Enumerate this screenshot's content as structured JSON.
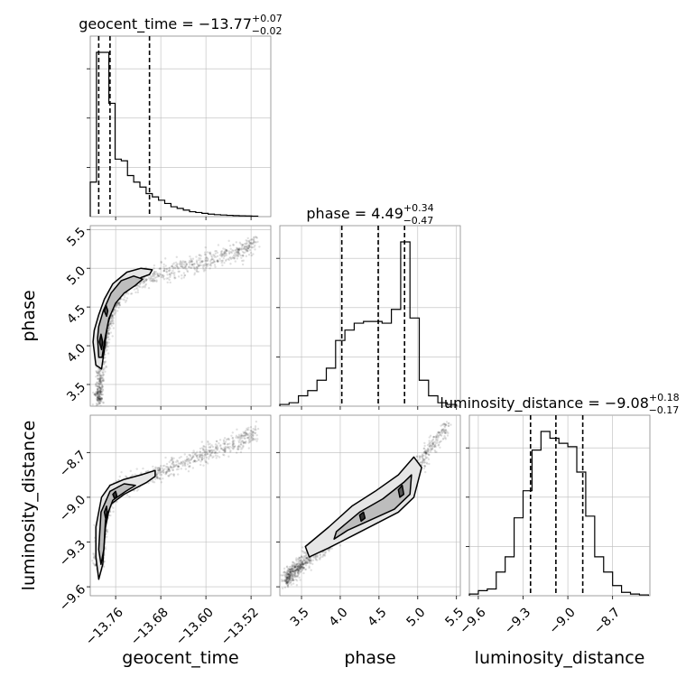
{
  "chart_data": {
    "type": "corner",
    "parameters": [
      "geocent_time",
      "phase",
      "luminosity_distance"
    ],
    "ranges": {
      "geocent_time": [
        -13.805,
        -13.485
      ],
      "phase": [
        3.22,
        5.55
      ],
      "luminosity_distance": [
        -9.66,
        -8.45
      ]
    },
    "ticks": {
      "geocent_time": {
        "values": [
          -13.76,
          -13.68,
          -13.6,
          -13.52
        ],
        "labels": [
          "−13.76",
          "−13.68",
          "−13.60",
          "−13.52"
        ]
      },
      "phase": {
        "values": [
          3.5,
          4.0,
          4.5,
          5.0,
          5.5
        ],
        "labels": [
          "3.5",
          "4.0",
          "4.5",
          "5.0",
          "5.5"
        ]
      },
      "luminosity_distance": {
        "values": [
          -9.6,
          -9.3,
          -9.0,
          -8.7
        ],
        "labels": [
          "−9.6",
          "−9.3",
          "−9.0",
          "−8.7"
        ]
      }
    },
    "titles": [
      {
        "param": "geocent_time",
        "label": "geocent_time = ",
        "median": "−13.77",
        "plus": "+0.07",
        "minus": "−0.02"
      },
      {
        "param": "phase",
        "label": "phase = ",
        "median": "4.49",
        "plus": "+0.34",
        "minus": "−0.47"
      },
      {
        "param": "luminosity_distance",
        "label": "luminosity_distance = ",
        "median": "−9.08",
        "plus": "+0.18",
        "minus": "−0.17"
      }
    ],
    "quantile_lines": {
      "geocent_time": [
        -13.79,
        -13.77,
        -13.7
      ],
      "phase": [
        4.02,
        4.49,
        4.83
      ],
      "luminosity_distance": [
        -9.25,
        -9.08,
        -8.9
      ]
    },
    "histograms": {
      "geocent_time": {
        "edges": [
          -13.805,
          -13.794,
          -13.783,
          -13.772,
          -13.761,
          -13.75,
          -13.739,
          -13.728,
          -13.717,
          -13.706,
          -13.695,
          -13.684,
          -13.673,
          -13.662,
          -13.651,
          -13.64,
          -13.629,
          -13.618,
          -13.607,
          -13.596,
          -13.585,
          -13.574,
          -13.563,
          -13.552,
          -13.541,
          -13.53,
          -13.519,
          -13.508
        ],
        "counts": [
          0.21,
          1.0,
          1.0,
          0.69,
          0.35,
          0.34,
          0.25,
          0.21,
          0.18,
          0.14,
          0.12,
          0.1,
          0.08,
          0.06,
          0.05,
          0.04,
          0.03,
          0.025,
          0.02,
          0.015,
          0.012,
          0.01,
          0.008,
          0.006,
          0.005,
          0.004,
          0.003
        ]
      },
      "phase": {
        "edges": [
          3.22,
          3.34,
          3.46,
          3.58,
          3.7,
          3.82,
          3.94,
          4.06,
          4.18,
          4.3,
          4.42,
          4.54,
          4.66,
          4.78,
          4.9,
          5.02,
          5.14,
          5.26,
          5.38,
          5.5
        ],
        "counts": [
          0.01,
          0.02,
          0.06,
          0.09,
          0.15,
          0.22,
          0.38,
          0.44,
          0.48,
          0.49,
          0.49,
          0.48,
          0.56,
          0.95,
          0.51,
          0.15,
          0.06,
          0.02,
          0.01
        ]
      },
      "luminosity_distance": {
        "edges": [
          -9.66,
          -9.6,
          -9.54,
          -9.48,
          -9.42,
          -9.36,
          -9.3,
          -9.24,
          -9.18,
          -9.12,
          -9.06,
          -9.0,
          -8.94,
          -8.88,
          -8.82,
          -8.76,
          -8.7,
          -8.64,
          -8.58,
          -8.52,
          -8.46
        ],
        "counts": [
          0.01,
          0.03,
          0.04,
          0.14,
          0.23,
          0.46,
          0.62,
          0.86,
          0.97,
          0.93,
          0.9,
          0.88,
          0.73,
          0.47,
          0.23,
          0.14,
          0.06,
          0.02,
          0.01,
          0.005
        ]
      }
    },
    "scatter_2d": [
      {
        "x_param": "geocent_time",
        "y_param": "phase",
        "trend": [
          [
            -13.79,
            3.3
          ],
          [
            -13.785,
            3.9
          ],
          [
            -13.775,
            4.25
          ],
          [
            -13.765,
            4.5
          ],
          [
            -13.75,
            4.68
          ],
          [
            -13.73,
            4.8
          ],
          [
            -13.7,
            4.9
          ],
          [
            -13.66,
            4.98
          ],
          [
            -13.62,
            5.05
          ],
          [
            -13.58,
            5.13
          ],
          [
            -13.54,
            5.22
          ],
          [
            -13.51,
            5.35
          ]
        ],
        "contours": [
          [
            [
              -13.8,
              4.05
            ],
            [
              -13.795,
              3.75
            ],
            [
              -13.785,
              3.7
            ],
            [
              -13.78,
              3.95
            ],
            [
              -13.775,
              4.25
            ],
            [
              -13.765,
              4.5
            ],
            [
              -13.75,
              4.66
            ],
            [
              -13.735,
              4.78
            ],
            [
              -13.715,
              4.88
            ],
            [
              -13.7,
              4.92
            ],
            [
              -13.695,
              4.98
            ],
            [
              -13.715,
              5.0
            ],
            [
              -13.74,
              4.95
            ],
            [
              -13.765,
              4.8
            ],
            [
              -13.78,
              4.6
            ],
            [
              -13.79,
              4.4
            ],
            [
              -13.798,
              4.2
            ]
          ],
          [
            [
              -13.792,
              4.1
            ],
            [
              -13.79,
              3.85
            ],
            [
              -13.784,
              3.85
            ],
            [
              -13.78,
              4.05
            ],
            [
              -13.772,
              4.35
            ],
            [
              -13.76,
              4.55
            ],
            [
              -13.745,
              4.68
            ],
            [
              -13.725,
              4.78
            ],
            [
              -13.712,
              4.86
            ],
            [
              -13.728,
              4.9
            ],
            [
              -13.75,
              4.84
            ],
            [
              -13.768,
              4.68
            ],
            [
              -13.782,
              4.45
            ],
            [
              -13.79,
              4.25
            ]
          ],
          [
            [
              -13.78,
              4.45
            ],
            [
              -13.776,
              4.38
            ],
            [
              -13.774,
              4.45
            ],
            [
              -13.777,
              4.52
            ]
          ],
          [
            [
              -13.789,
              4.05
            ],
            [
              -13.785,
              3.95
            ],
            [
              -13.783,
              4.05
            ],
            [
              -13.786,
              4.15
            ]
          ]
        ]
      },
      {
        "x_param": "geocent_time",
        "y_param": "luminosity_distance",
        "trend": [
          [
            -13.79,
            -9.45
          ],
          [
            -13.785,
            -9.25
          ],
          [
            -13.775,
            -9.05
          ],
          [
            -13.76,
            -8.95
          ],
          [
            -13.74,
            -8.92
          ],
          [
            -13.7,
            -8.85
          ],
          [
            -13.66,
            -8.8
          ],
          [
            -13.62,
            -8.74
          ],
          [
            -13.58,
            -8.68
          ],
          [
            -13.54,
            -8.62
          ],
          [
            -13.51,
            -8.56
          ]
        ],
        "contours": [
          [
            [
              -13.795,
              -9.4
            ],
            [
              -13.79,
              -9.55
            ],
            [
              -13.783,
              -9.45
            ],
            [
              -13.778,
              -9.2
            ],
            [
              -13.77,
              -9.05
            ],
            [
              -13.745,
              -8.98
            ],
            [
              -13.72,
              -8.93
            ],
            [
              -13.705,
              -8.9
            ],
            [
              -13.69,
              -8.86
            ],
            [
              -13.69,
              -8.82
            ],
            [
              -13.715,
              -8.85
            ],
            [
              -13.745,
              -8.88
            ],
            [
              -13.77,
              -8.92
            ],
            [
              -13.785,
              -9.0
            ],
            [
              -13.795,
              -9.2
            ]
          ],
          [
            [
              -13.79,
              -9.35
            ],
            [
              -13.786,
              -9.45
            ],
            [
              -13.781,
              -9.35
            ],
            [
              -13.778,
              -9.15
            ],
            [
              -13.765,
              -9.02
            ],
            [
              -13.742,
              -8.96
            ],
            [
              -13.725,
              -8.92
            ],
            [
              -13.745,
              -8.91
            ],
            [
              -13.77,
              -8.96
            ],
            [
              -13.786,
              -9.1
            ]
          ],
          [
            [
              -13.78,
              -9.1
            ],
            [
              -13.776,
              -9.06
            ],
            [
              -13.775,
              -9.1
            ],
            [
              -13.778,
              -9.14
            ]
          ],
          [
            [
              -13.765,
              -8.98
            ],
            [
              -13.76,
              -8.96
            ],
            [
              -13.758,
              -8.99
            ],
            [
              -13.762,
              -9.01
            ]
          ]
        ]
      },
      {
        "x_param": "phase",
        "y_param": "luminosity_distance",
        "trend": [
          [
            3.3,
            -9.55
          ],
          [
            3.6,
            -9.4
          ],
          [
            3.9,
            -9.28
          ],
          [
            4.2,
            -9.15
          ],
          [
            4.5,
            -9.05
          ],
          [
            4.8,
            -8.92
          ],
          [
            5.0,
            -8.8
          ],
          [
            5.2,
            -8.65
          ],
          [
            5.4,
            -8.5
          ]
        ],
        "contours": [
          [
            [
              3.55,
              -9.33
            ],
            [
              3.85,
              -9.2
            ],
            [
              4.15,
              -9.06
            ],
            [
              4.45,
              -8.96
            ],
            [
              4.75,
              -8.85
            ],
            [
              4.95,
              -8.73
            ],
            [
              5.05,
              -8.8
            ],
            [
              4.95,
              -9.0
            ],
            [
              4.75,
              -9.1
            ],
            [
              4.45,
              -9.18
            ],
            [
              4.15,
              -9.26
            ],
            [
              3.85,
              -9.34
            ],
            [
              3.6,
              -9.4
            ]
          ],
          [
            [
              3.95,
              -9.23
            ],
            [
              4.25,
              -9.1
            ],
            [
              4.55,
              -9.01
            ],
            [
              4.82,
              -8.9
            ],
            [
              4.92,
              -8.85
            ],
            [
              4.9,
              -8.98
            ],
            [
              4.7,
              -9.08
            ],
            [
              4.4,
              -9.15
            ],
            [
              4.1,
              -9.22
            ],
            [
              3.92,
              -9.28
            ]
          ],
          [
            [
              4.75,
              -8.95
            ],
            [
              4.8,
              -8.92
            ],
            [
              4.82,
              -8.98
            ],
            [
              4.77,
              -9.0
            ]
          ],
          [
            [
              4.25,
              -9.12
            ],
            [
              4.3,
              -9.1
            ],
            [
              4.32,
              -9.14
            ],
            [
              4.27,
              -9.16
            ]
          ]
        ]
      }
    ],
    "grid": true
  }
}
